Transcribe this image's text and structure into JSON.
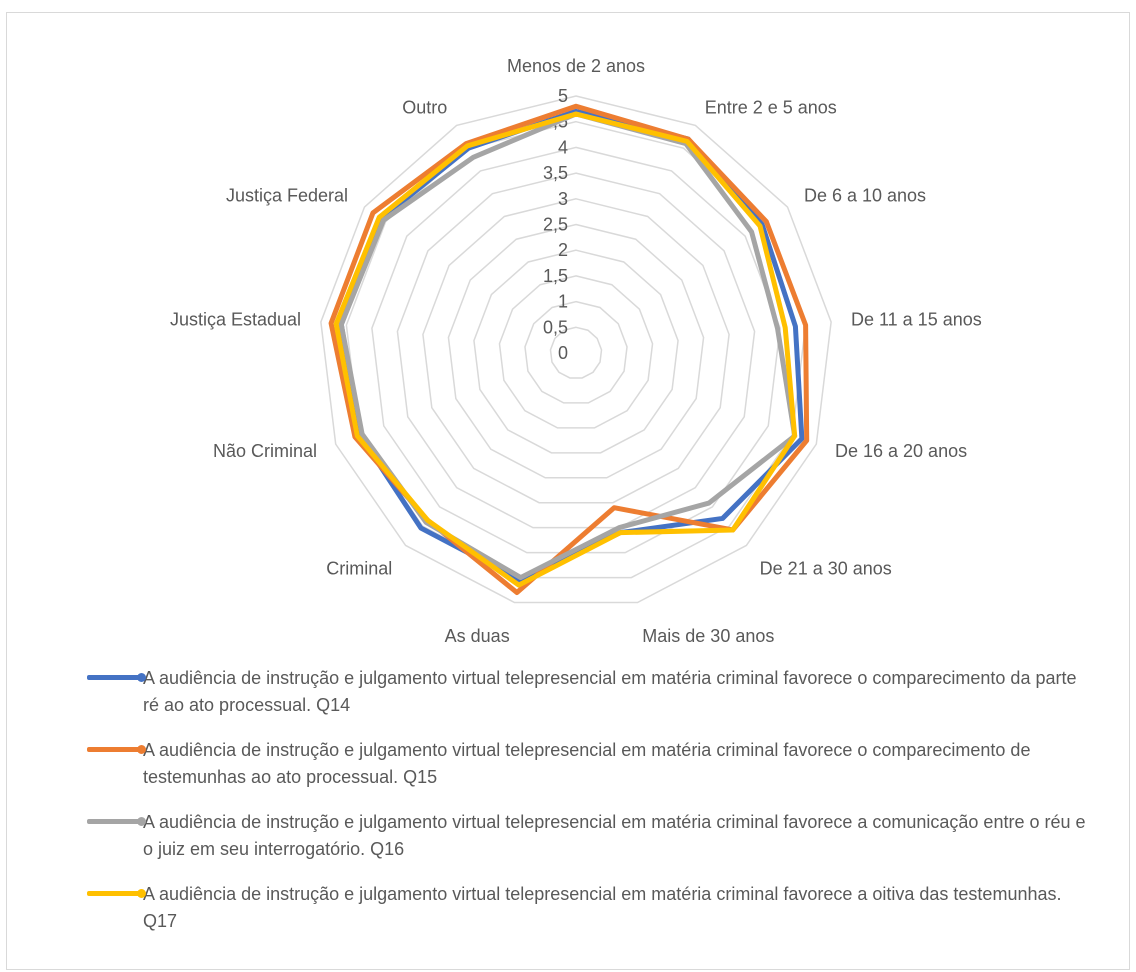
{
  "chart_data": {
    "type": "radar",
    "title": "",
    "categories": [
      "Menos de 2 anos",
      "Entre 2 e 5 anos",
      "De 6 a 10 anos",
      "De 11 a 15 anos",
      "De 16 a 20 anos",
      "De 21 a 30 anos",
      "Mais de 30 anos",
      "As duas",
      "Criminal",
      "Não Criminal",
      "Justiça Estadual",
      "Justiça Federal",
      "Outro"
    ],
    "rlim": [
      0,
      5
    ],
    "ticks": [
      "0",
      "0,5",
      "1",
      "1,5",
      "2",
      "2,5",
      "3",
      "3,5",
      "4",
      "4,5",
      "5"
    ],
    "grid": true,
    "legend_position": "bottom",
    "series": [
      {
        "name": "A audiência de instrução e julgamento virtual telepresencial em matéria criminal favorece o comparecimento da parte ré ao ato processual. Q14",
        "color": "#4472C4",
        "values": [
          4.7,
          4.7,
          4.4,
          4.3,
          4.7,
          4.3,
          3.6,
          4.55,
          4.55,
          4.5,
          4.6,
          4.6,
          4.5
        ]
      },
      {
        "name": "A audiência de instrução e julgamento virtual telepresencial em matéria criminal favorece o comparecimento de testemunhas ao ato processual. Q15",
        "color": "#ED7D31",
        "values": [
          4.8,
          4.7,
          4.5,
          4.5,
          4.8,
          4.6,
          3.1,
          4.8,
          4.35,
          4.6,
          4.8,
          4.8,
          4.6
        ]
      },
      {
        "name": "A audiência de instrução e julgamento virtual telepresencial em matéria criminal favorece a comunicação entre o réu e o juiz em seu interrogatório. Q16",
        "color": "#A5A5A5",
        "values": [
          4.65,
          4.6,
          4.15,
          3.95,
          4.55,
          3.9,
          3.5,
          4.5,
          4.4,
          4.45,
          4.6,
          4.55,
          4.3
        ]
      },
      {
        "name": "A audiência de instrução e julgamento virtual telepresencial em matéria criminal favorece a oitiva das testemunhas. Q17",
        "color": "#FFC000",
        "values": [
          4.65,
          4.65,
          4.35,
          4.1,
          4.55,
          4.6,
          3.6,
          4.65,
          4.35,
          4.55,
          4.7,
          4.65,
          4.55
        ]
      }
    ]
  }
}
